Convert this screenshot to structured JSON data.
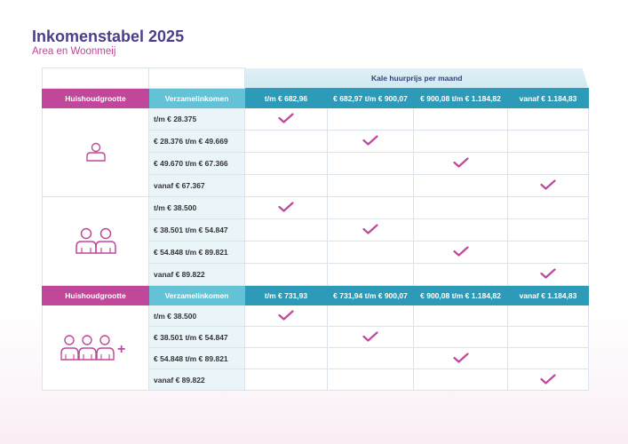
{
  "page": {
    "title": "Inkomenstabel 2025",
    "subtitle": "Area en Woonmeij"
  },
  "colors": {
    "magenta": "#c0479a",
    "teal": "#2d9bb8",
    "light_teal": "#63c2d6",
    "navy": "#4a3f8a"
  },
  "table": {
    "rent_header": "Kale huurprijs per maand",
    "sections": [
      {
        "household_label": "Huishoudgrootte",
        "income_label": "Verzamelinkomen",
        "rent_columns": [
          "t/m € 682,96",
          "€ 682,97 t/m € 900,07",
          "€ 900,08 t/m € 1.184,82",
          "vanaf € 1.184,83"
        ],
        "groups": [
          {
            "icon": "one-person-icon",
            "rows": [
              {
                "income": "t/m € 28.375",
                "checked_col": 0
              },
              {
                "income": "€ 28.376 t/m € 49.669",
                "checked_col": 1
              },
              {
                "income": "€ 49.670 t/m € 67.366",
                "checked_col": 2
              },
              {
                "income": "vanaf € 67.367",
                "checked_col": 3
              }
            ]
          },
          {
            "icon": "two-persons-icon",
            "rows": [
              {
                "income": "t/m € 38.500",
                "checked_col": 0
              },
              {
                "income": "€ 38.501 t/m € 54.847",
                "checked_col": 1
              },
              {
                "income": "€ 54.848 t/m € 89.821",
                "checked_col": 2
              },
              {
                "income": "vanaf € 89.822",
                "checked_col": 3
              }
            ]
          }
        ]
      },
      {
        "household_label": "Huishoudgrootte",
        "income_label": "Verzamelinkomen",
        "rent_columns": [
          "t/m € 731,93",
          "€ 731,94 t/m € 900,07",
          "€ 900,08 t/m € 1.184,82",
          "vanaf € 1.184,83"
        ],
        "groups": [
          {
            "icon": "three-persons-plus-icon",
            "plus": "+",
            "rows": [
              {
                "income": "t/m € 38.500",
                "checked_col": 0
              },
              {
                "income": "€ 38.501 t/m € 54.847",
                "checked_col": 1
              },
              {
                "income": "€ 54.848 t/m € 89.821",
                "checked_col": 2
              },
              {
                "income": "vanaf € 89.822",
                "checked_col": 3
              }
            ]
          }
        ]
      }
    ]
  }
}
